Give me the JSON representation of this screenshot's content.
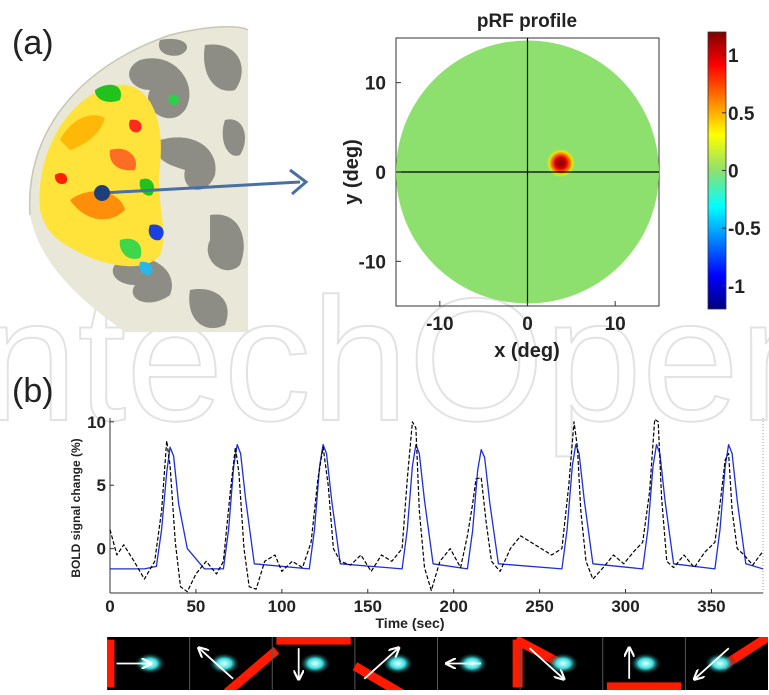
{
  "panels": {
    "a_label": "(a)",
    "b_label": "(b)"
  },
  "watermark": "IntechOpen",
  "colors": {
    "prf_background": "#8ee06e",
    "bold_fit": "#1f2fd6",
    "bold_measured": "#000000",
    "stimulus_bar": "#ff1a00",
    "stimulus_blob": "#3ce0e0",
    "arrow_connector": "#4a6fa5"
  },
  "chart_data": [
    {
      "id": "prf",
      "type": "heatmap",
      "title": "pRF profile",
      "xlabel": "x (deg)",
      "ylabel": "y (deg)",
      "xlim": [
        -15,
        15
      ],
      "ylim": [
        -15,
        15
      ],
      "xticks": [
        -10,
        0,
        10
      ],
      "yticks": [
        -10,
        0,
        10
      ],
      "xtick_labels": [
        "-10",
        "0",
        "10"
      ],
      "ytick_labels": [
        "-10",
        "0",
        "10"
      ],
      "field_radius": 15,
      "prf_center": [
        3.8,
        1.0
      ],
      "prf_sigma": 1.0,
      "peak": 1.0,
      "colorbar": {
        "range": [
          -1.2,
          1.2
        ],
        "ticks": [
          1,
          0.5,
          0,
          -0.5,
          -1
        ],
        "tick_labels": [
          "1",
          "0.5",
          "0",
          "-0.5",
          "-1"
        ]
      }
    },
    {
      "id": "bold",
      "type": "line",
      "xlabel": "Time (sec)",
      "ylabel": "BOLD signal change (%)",
      "xlim": [
        0,
        380
      ],
      "ylim": [
        -3.5,
        10.3
      ],
      "xticks": [
        0,
        50,
        100,
        150,
        200,
        250,
        300,
        350
      ],
      "xtick_labels": [
        "0",
        "50",
        "100",
        "150",
        "200",
        "250",
        "300",
        "350"
      ],
      "yticks": [
        0,
        5,
        10
      ],
      "ytick_labels": [
        "0",
        "5",
        "10"
      ],
      "baseline": -1.6,
      "peaks": [
        35,
        74,
        124,
        178,
        216,
        271,
        318,
        360
      ],
      "fit_peak_heights": [
        8.0,
        8.2,
        8.2,
        8.2,
        7.8,
        8.2,
        8.2,
        8.2
      ],
      "series": [
        {
          "style": "solid",
          "x": [
            0,
            20,
            27,
            30,
            33,
            35,
            37,
            40,
            45,
            55,
            66,
            69,
            72,
            74,
            76,
            79,
            84,
            116,
            119,
            122,
            124,
            126,
            129,
            134,
            170,
            173,
            176,
            178,
            180,
            183,
            188,
            208,
            211,
            214,
            216,
            218,
            221,
            226,
            263,
            266,
            269,
            271,
            273,
            276,
            281,
            310,
            313,
            316,
            318,
            320,
            323,
            328,
            352,
            355,
            358,
            360,
            362,
            365,
            370,
            380
          ],
          "y": [
            -1.6,
            -1.6,
            -1.4,
            1.5,
            6.0,
            8.0,
            7.3,
            3.5,
            0.0,
            -1.6,
            -1.6,
            1.5,
            6.5,
            8.2,
            7.5,
            3.8,
            -1.2,
            -1.6,
            1.5,
            6.5,
            8.2,
            7.5,
            3.8,
            -1.2,
            -1.6,
            1.5,
            6.5,
            8.2,
            7.5,
            3.8,
            -1.2,
            -1.6,
            1.4,
            6.2,
            7.8,
            7.2,
            3.6,
            -1.2,
            -1.6,
            1.5,
            6.5,
            8.2,
            7.5,
            3.8,
            -1.2,
            -1.6,
            1.5,
            6.5,
            8.2,
            7.5,
            3.8,
            -1.2,
            -1.6,
            1.5,
            6.5,
            8.2,
            7.5,
            3.8,
            -1.2,
            -1.6
          ]
        },
        {
          "style": "dashed",
          "x": [
            0,
            4,
            8,
            14,
            20,
            26,
            30,
            33,
            35,
            38,
            41,
            45,
            50,
            56,
            62,
            66,
            70,
            73,
            75,
            78,
            81,
            85,
            90,
            96,
            100,
            106,
            112,
            117,
            121,
            124,
            127,
            130,
            134,
            140,
            146,
            152,
            158,
            164,
            170,
            173,
            176,
            178,
            180,
            183,
            187,
            192,
            198,
            204,
            208,
            211,
            213,
            216,
            219,
            222,
            227,
            233,
            239,
            245,
            251,
            257,
            263,
            267,
            270,
            272,
            274,
            277,
            281,
            287,
            293,
            299,
            305,
            310,
            314,
            317,
            319,
            321,
            324,
            328,
            334,
            340,
            346,
            352,
            355,
            358,
            360,
            362,
            365,
            369,
            374,
            380
          ],
          "y": [
            1.5,
            -0.5,
            0.3,
            -1.0,
            -2.4,
            -1.0,
            3.0,
            8.5,
            6.5,
            0.5,
            -3.0,
            -3.4,
            -2.0,
            -1.0,
            -2.0,
            -1.0,
            4.5,
            8.0,
            6.0,
            0.0,
            -3.0,
            -3.2,
            -1.0,
            -0.5,
            -1.8,
            -1.0,
            -1.5,
            0.5,
            5.5,
            8.0,
            5.0,
            0.0,
            -1.0,
            -1.3,
            -0.5,
            -1.8,
            -0.5,
            -1.0,
            0.0,
            5.5,
            10.0,
            9.5,
            3.0,
            -1.5,
            -3.3,
            -1.0,
            0.0,
            -1.5,
            1.0,
            3.5,
            5.5,
            5.6,
            2.0,
            -1.0,
            -1.8,
            0.0,
            1.0,
            0.5,
            0.0,
            -0.5,
            0.0,
            5.0,
            10.0,
            8.0,
            3.0,
            -1.0,
            -2.4,
            -1.5,
            -0.5,
            -1.2,
            -0.2,
            0.5,
            4.5,
            10.2,
            10.0,
            4.0,
            -1.0,
            -1.5,
            -0.5,
            -1.5,
            -0.3,
            0.5,
            3.5,
            7.0,
            7.5,
            3.0,
            0.0,
            -0.5,
            -1.3,
            -0.2
          ]
        }
      ]
    }
  ],
  "stimulus_strip": [
    {
      "blob_x": 0.52,
      "arrow": "right",
      "bar": "left"
    },
    {
      "blob_x": 0.42,
      "arrow": "up-left",
      "bar": "diag-bottom-right"
    },
    {
      "blob_x": 0.52,
      "arrow": "down",
      "bar": "top"
    },
    {
      "blob_x": 0.52,
      "arrow": "up-right",
      "bar": "diag-bottom-left"
    },
    {
      "blob_x": 0.42,
      "arrow": "left",
      "bar": "right"
    },
    {
      "blob_x": 0.52,
      "arrow": "down-right",
      "bar": "diag-top-left"
    },
    {
      "blob_x": 0.52,
      "arrow": "up",
      "bar": "bottom"
    },
    {
      "blob_x": 0.42,
      "arrow": "down-left",
      "bar": "diag-top-right"
    }
  ]
}
